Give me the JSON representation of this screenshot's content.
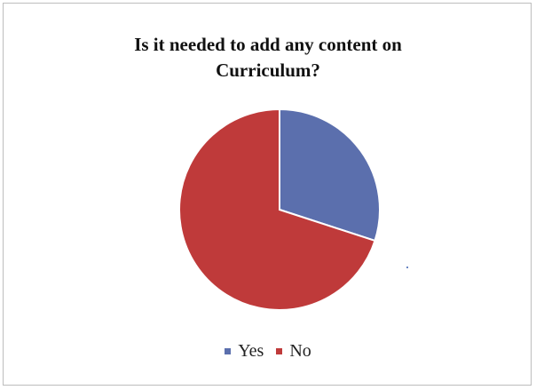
{
  "chart_data": {
    "type": "pie",
    "title_lines": [
      "Is it needed to add any content on",
      "Curriculum?"
    ],
    "slices": [
      {
        "name": "Yes",
        "value": 30,
        "color": "#5b6fad"
      },
      {
        "name": "No",
        "value": 70,
        "color": "#bf3a3a"
      }
    ],
    "start_angle_deg": 0,
    "direction": "clockwise",
    "legend_position": "bottom"
  }
}
